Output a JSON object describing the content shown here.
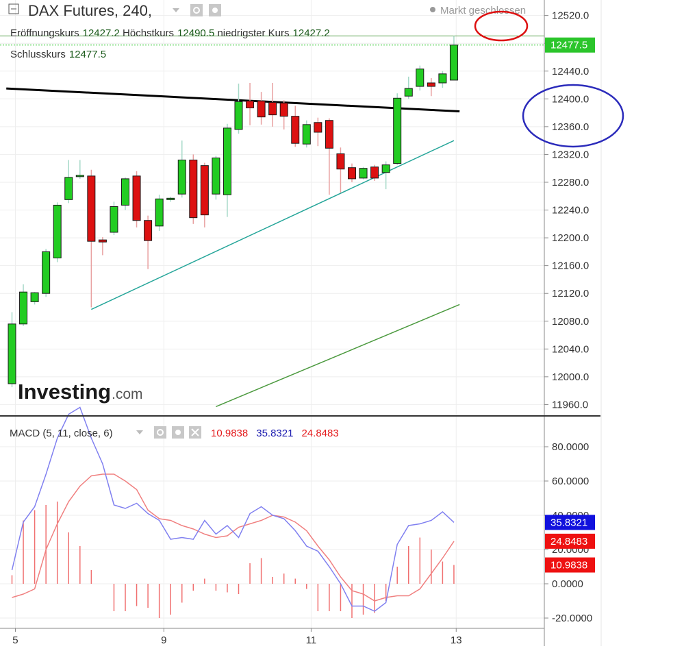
{
  "header": {
    "symbol": "DAX Futures, 240,",
    "market_status": "Markt geschlossen",
    "ohlc_line1": [
      {
        "label": "Eröffnungskurs",
        "value": "12427.2"
      },
      {
        "label": "Höchstkurs",
        "value": "12490.5"
      },
      {
        "label": "niedrigster Kurs",
        "value": "12427.2"
      }
    ],
    "ohlc_line2": [
      {
        "label": "Schlusskurs",
        "value": "12477.5"
      }
    ]
  },
  "logo": {
    "brand": "Investing",
    "suffix": ".com"
  },
  "macd": {
    "label": "MACD (5, 11, close, 6)",
    "values": [
      {
        "text": "10.9838",
        "color": "#e41a1c"
      },
      {
        "text": "35.8321",
        "color": "#1c1cb0"
      },
      {
        "text": "24.8483",
        "color": "#e41a1c"
      }
    ]
  },
  "colors": {
    "up": "#22cc22",
    "down": "#dd1111",
    "macd_line": "#8080f0",
    "signal_line": "#f08080",
    "histogram": "#f07070",
    "last_price_bg": "#2bc52b",
    "macd_badge": "#1111dd",
    "signal_badge": "#ee1111",
    "hist_badge": "#ee1111"
  },
  "chart_data": [
    {
      "type": "candlestick",
      "title": "DAX Futures, 240,",
      "y_ticks": [
        "12520.0",
        "12480.0",
        "12440.0",
        "12400.0",
        "12360.0",
        "12320.0",
        "12280.0",
        "12240.0",
        "12200.0",
        "12160.0",
        "12120.0",
        "12080.0",
        "12040.0",
        "12000.0",
        "11960.0"
      ],
      "ylim": [
        11955,
        12530
      ],
      "last_price": "12477.5",
      "ohlc": [
        [
          11990,
          12076,
          11985,
          12093
        ],
        [
          12076,
          12122,
          12073,
          12133
        ],
        [
          12108,
          12121,
          12104,
          12122
        ],
        [
          12120,
          12180,
          12115,
          12184
        ],
        [
          12171,
          12247,
          12165,
          12251
        ],
        [
          12255,
          12287,
          12250,
          12312
        ],
        [
          12289,
          12290,
          12285,
          12312
        ],
        [
          12289,
          12195,
          12100,
          12298
        ],
        [
          12197,
          12194,
          12175,
          12201
        ],
        [
          12208,
          12245,
          12204,
          12252
        ],
        [
          12247,
          12285,
          12240,
          12287
        ],
        [
          12289,
          12225,
          12215,
          12296
        ],
        [
          12225,
          12196,
          12155,
          12232
        ],
        [
          12217,
          12256,
          12210,
          12262
        ],
        [
          12255,
          12257,
          12252,
          12259
        ],
        [
          12263,
          12312,
          12258,
          12340
        ],
        [
          12312,
          12229,
          12220,
          12320
        ],
        [
          12304,
          12233,
          12215,
          12308
        ],
        [
          12263,
          12315,
          12255,
          12318
        ],
        [
          12262,
          12358,
          12230,
          12364
        ],
        [
          12356,
          12396,
          12350,
          12422
        ],
        [
          12397,
          12387,
          12362,
          12423
        ],
        [
          12397,
          12374,
          12363,
          12410
        ],
        [
          12395,
          12377,
          12360,
          12423
        ],
        [
          12394,
          12375,
          12356,
          12398
        ],
        [
          12375,
          12336,
          12331,
          12390
        ],
        [
          12335,
          12363,
          12330,
          12369
        ],
        [
          12366,
          12352,
          12332,
          12373
        ],
        [
          12369,
          12329,
          12262,
          12372
        ],
        [
          12321,
          12299,
          12265,
          12330
        ],
        [
          12301,
          12285,
          12280,
          12307
        ],
        [
          12286,
          12300,
          12284,
          12302
        ],
        [
          12302,
          12286,
          12282,
          12305
        ],
        [
          12294,
          12305,
          12270,
          12310
        ],
        [
          12307,
          12401,
          12305,
          12408
        ],
        [
          12404,
          12415,
          12400,
          12432
        ],
        [
          12418,
          12443,
          12412,
          12448
        ],
        [
          12423,
          12418,
          12404,
          12430
        ],
        [
          12423,
          12436,
          12416,
          12440
        ],
        [
          12427,
          12477.5,
          12427.2,
          12490.5
        ]
      ],
      "annotations": [
        {
          "kind": "trendline",
          "color": "#000000",
          "from": [
            -0.5,
            12415
          ],
          "to": [
            39.5,
            12382
          ]
        },
        {
          "kind": "trendline",
          "color": "#26a69a",
          "from": [
            7,
            12097
          ],
          "to": [
            39,
            12340
          ]
        },
        {
          "kind": "trendline",
          "color": "#4c9a3f",
          "from": [
            18,
            11957
          ],
          "to": [
            39.5,
            12104
          ]
        },
        {
          "kind": "hline",
          "color": "#4c9a3f",
          "y": 12490.5
        }
      ]
    },
    {
      "type": "line",
      "title": "MACD (5, 11, close, 6)",
      "y_ticks": [
        "80.0000",
        "60.0000",
        "40.0000",
        "20.0000",
        "0.0000",
        "-20.0000"
      ],
      "ylim": [
        -28,
        88
      ],
      "series": [
        {
          "name": "MACD",
          "values": [
            8,
            36,
            45,
            64,
            85,
            99,
            103,
            85,
            70,
            46,
            44,
            47,
            41,
            37,
            26,
            27,
            26,
            37,
            29,
            34,
            27,
            41,
            45,
            40,
            38,
            31,
            22,
            19,
            10,
            0,
            -13,
            -13,
            -16,
            -11,
            23,
            34,
            35,
            37,
            42,
            35.8321
          ]
        },
        {
          "name": "Signal",
          "values": [
            -8,
            -6,
            -3,
            20,
            35,
            48,
            57,
            63,
            64,
            64,
            60,
            55,
            43,
            38,
            37,
            34,
            32,
            29,
            27,
            28,
            33,
            35,
            37,
            40,
            39,
            36,
            31,
            22,
            14,
            4,
            -4,
            -6,
            -10,
            -8,
            -7,
            -7,
            -3,
            6,
            15,
            24.8483
          ]
        },
        {
          "name": "Histogram",
          "values": [
            5,
            37,
            43,
            46,
            48,
            30,
            22,
            8,
            0,
            -16,
            -16,
            -13,
            -14,
            -20,
            -18,
            -11,
            -4,
            3,
            -4,
            -5,
            -6,
            12,
            15,
            4,
            6,
            3,
            -3,
            -16,
            -16,
            -16,
            -20,
            -18,
            -17,
            -10,
            10,
            22,
            27,
            20,
            13,
            10.9838
          ]
        }
      ],
      "x_ticks": [
        {
          "index": 0.3,
          "label": "5"
        },
        {
          "index": 13.4,
          "label": "9"
        },
        {
          "index": 26.4,
          "label": "11"
        },
        {
          "index": 39.2,
          "label": "13"
        }
      ]
    }
  ]
}
